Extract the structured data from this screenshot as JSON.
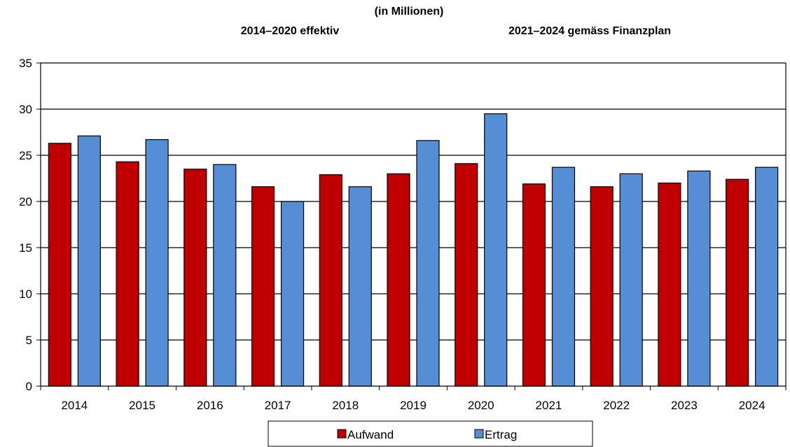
{
  "header": {
    "unit": "(in Millionen)",
    "left_caption": "2014–2020 effektiv",
    "right_caption": "2021–2024 gemäss Finanzplan"
  },
  "colors": {
    "aufwand": "#C00000",
    "ertrag": "#558ED5",
    "grid": "#000000"
  },
  "chart_data": {
    "type": "bar",
    "title": "",
    "xlabel": "",
    "ylabel": "",
    "categories": [
      "2014",
      "2015",
      "2016",
      "2017",
      "2018",
      "2019",
      "2020",
      "2021",
      "2022",
      "2023",
      "2024"
    ],
    "series": [
      {
        "name": "Aufwand",
        "values": [
          26.3,
          24.3,
          23.5,
          21.6,
          22.9,
          23.0,
          24.1,
          21.9,
          21.6,
          22.0,
          22.4
        ]
      },
      {
        "name": "Ertrag",
        "values": [
          27.1,
          26.7,
          24.0,
          20.0,
          21.6,
          26.6,
          29.5,
          23.7,
          23.0,
          23.3,
          23.7
        ]
      }
    ],
    "ylim": [
      0,
      35
    ],
    "yticks": [
      0,
      5,
      10,
      15,
      20,
      25,
      30,
      35
    ],
    "grid": true,
    "legend": "bottom-center"
  }
}
